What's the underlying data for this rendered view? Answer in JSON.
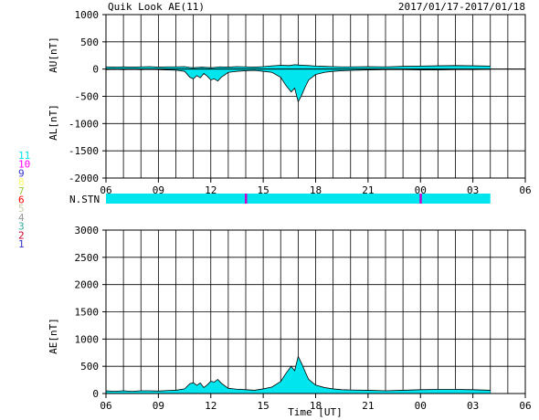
{
  "header": {
    "title": "Quik Look AE(11)",
    "date_range": "2017/01/17-2017/01/18"
  },
  "chart_data": [
    {
      "type": "area",
      "panel": "AU/AL",
      "ylabel_top": "AU[nT]",
      "ylabel_bottom": "AL[nT]",
      "ylim": [
        -2000,
        1000
      ],
      "yticks": [
        "1000",
        "500",
        "0",
        "-500",
        "-1000",
        "-1500",
        "-2000"
      ],
      "ytick_values": [
        1000,
        500,
        0,
        -500,
        -1000,
        -1500,
        -2000
      ],
      "xlim": [
        6,
        30
      ],
      "xticks": [
        "06",
        "09",
        "12",
        "15",
        "18",
        "21",
        "00",
        "03",
        "06"
      ],
      "xtick_values": [
        6,
        9,
        12,
        15,
        18,
        21,
        24,
        27,
        30
      ],
      "grid": true,
      "data_end_hour": 28,
      "series": [
        {
          "key": "AU",
          "color": "#00e5ee",
          "x": [
            6,
            6.5,
            7,
            7.5,
            8,
            8.5,
            9,
            9.5,
            10,
            10.5,
            10.8,
            11,
            11.2,
            11.5,
            11.8,
            12,
            12.2,
            12.5,
            13,
            13.5,
            14,
            14.5,
            15,
            15.5,
            16,
            16.5,
            16.8,
            17,
            17.3,
            17.6,
            18,
            18.5,
            19,
            19.5,
            20,
            21,
            22,
            23,
            24,
            25,
            26,
            27,
            28
          ],
          "values": [
            40,
            35,
            40,
            35,
            40,
            45,
            35,
            40,
            40,
            45,
            30,
            25,
            30,
            35,
            30,
            25,
            30,
            40,
            35,
            45,
            40,
            35,
            45,
            60,
            70,
            65,
            80,
            75,
            70,
            65,
            55,
            50,
            45,
            40,
            40,
            45,
            40,
            50,
            55,
            60,
            65,
            60,
            55
          ]
        },
        {
          "key": "AL",
          "color": "#00e5ee",
          "x": [
            6,
            6.5,
            7,
            7.5,
            8,
            8.5,
            9,
            9.5,
            10,
            10.5,
            10.8,
            11,
            11.2,
            11.4,
            11.6,
            11.8,
            12,
            12.2,
            12.4,
            12.6,
            13,
            13.5,
            14,
            14.5,
            15,
            15.5,
            16,
            16.3,
            16.6,
            16.8,
            17,
            17.2,
            17.4,
            17.6,
            18,
            18.5,
            19,
            19.5,
            20,
            21,
            22,
            23,
            24,
            25,
            26,
            27,
            28
          ],
          "values": [
            -10,
            -5,
            -10,
            -5,
            -10,
            -5,
            -10,
            -15,
            -20,
            -40,
            -150,
            -180,
            -120,
            -160,
            -80,
            -130,
            -200,
            -180,
            -220,
            -150,
            -60,
            -40,
            -30,
            -25,
            -40,
            -60,
            -150,
            -300,
            -420,
            -350,
            -600,
            -480,
            -330,
            -200,
            -100,
            -60,
            -40,
            -30,
            -25,
            -15,
            -10,
            -10,
            -15,
            -15,
            -10,
            -10,
            -5
          ]
        }
      ]
    },
    {
      "type": "area",
      "panel": "AE",
      "ylabel": "AE[nT]",
      "xlabel": "Time [UT]",
      "ylim": [
        0,
        3000
      ],
      "yticks": [
        "3000",
        "2500",
        "2000",
        "1500",
        "1000",
        "500",
        "0"
      ],
      "ytick_values": [
        3000,
        2500,
        2000,
        1500,
        1000,
        500,
        0
      ],
      "xlim": [
        6,
        30
      ],
      "xticks": [
        "06",
        "09",
        "12",
        "15",
        "18",
        "21",
        "00",
        "03",
        "06"
      ],
      "xtick_values": [
        6,
        9,
        12,
        15,
        18,
        21,
        24,
        27,
        30
      ],
      "grid": true,
      "data_end_hour": 28,
      "series": [
        {
          "key": "AE",
          "color": "#00e5ee",
          "x": [
            6,
            6.5,
            7,
            7.5,
            8,
            8.5,
            9,
            9.5,
            10,
            10.5,
            10.8,
            11,
            11.2,
            11.4,
            11.6,
            11.8,
            12,
            12.2,
            12.4,
            12.6,
            13,
            13.5,
            14,
            14.5,
            15,
            15.5,
            16,
            16.3,
            16.6,
            16.8,
            17,
            17.2,
            17.4,
            17.6,
            18,
            18.5,
            19,
            19.5,
            20,
            21,
            22,
            23,
            24,
            25,
            26,
            27,
            28
          ],
          "values": [
            50,
            40,
            50,
            40,
            50,
            50,
            45,
            55,
            60,
            85,
            180,
            200,
            150,
            195,
            110,
            160,
            225,
            210,
            260,
            190,
            95,
            80,
            70,
            60,
            85,
            120,
            220,
            370,
            500,
            420,
            680,
            550,
            400,
            260,
            155,
            110,
            85,
            70,
            65,
            60,
            50,
            60,
            70,
            75,
            75,
            70,
            60
          ]
        }
      ]
    }
  ],
  "station_bar": {
    "label": "N.STN",
    "color": "#00e5ee",
    "start_hour": 6,
    "end_hour": 28,
    "markers": [
      {
        "hour": 14.0,
        "color": "#cc00cc"
      },
      {
        "hour": 24.0,
        "color": "#cc00cc"
      }
    ]
  },
  "station_legend": [
    {
      "label": "11",
      "color": "#00e5ee"
    },
    {
      "label": "10",
      "color": "#ff00ff"
    },
    {
      "label": "9",
      "color": "#3333cc"
    },
    {
      "label": "8",
      "color": "#ffff66"
    },
    {
      "label": "7",
      "color": "#99cc33"
    },
    {
      "label": "6",
      "color": "#ff0000"
    },
    {
      "label": "5",
      "color": "#ccccaa"
    },
    {
      "label": "4",
      "color": "#999999"
    },
    {
      "label": "3",
      "color": "#33aa99"
    },
    {
      "label": "2",
      "color": "#cc0033"
    },
    {
      "label": "1",
      "color": "#3333cc"
    }
  ]
}
